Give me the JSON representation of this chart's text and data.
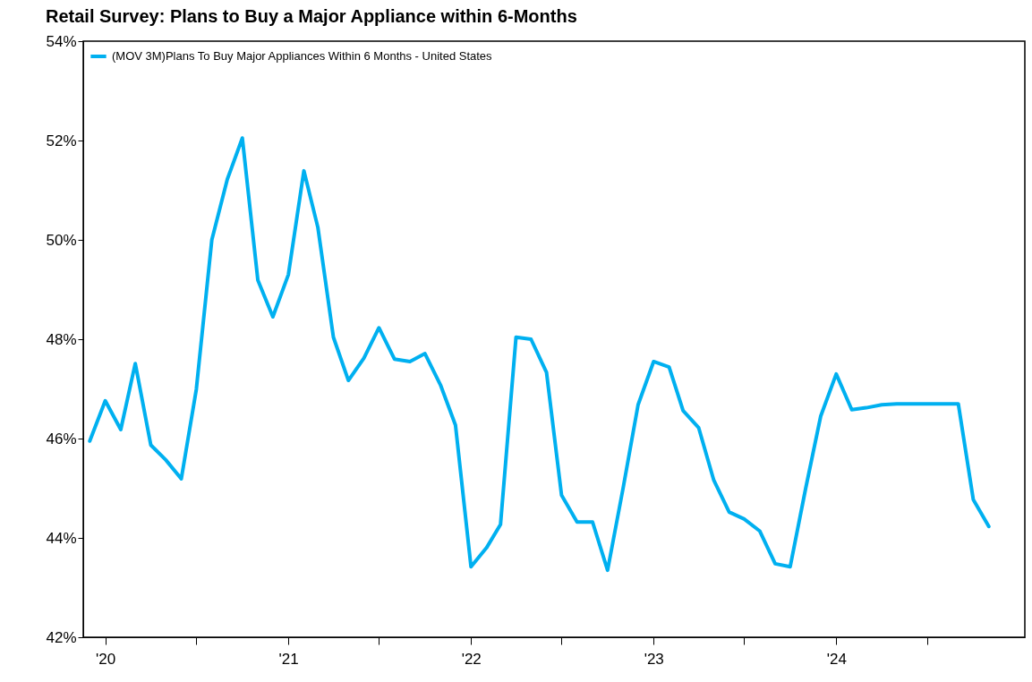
{
  "chart_data": {
    "type": "line",
    "title": "Retail Survey: Plans to Buy a Major Appliance within 6-Months",
    "x": [
      "2019-12",
      "2020-01",
      "2020-02",
      "2020-03",
      "2020-04",
      "2020-05",
      "2020-06",
      "2020-07",
      "2020-08",
      "2020-09",
      "2020-10",
      "2020-11",
      "2020-12",
      "2021-01",
      "2021-02",
      "2021-03",
      "2021-04",
      "2021-05",
      "2021-06",
      "2021-07",
      "2021-08",
      "2021-09",
      "2021-10",
      "2021-11",
      "2021-12",
      "2022-01",
      "2022-02",
      "2022-03",
      "2022-04",
      "2022-05",
      "2022-06",
      "2022-07",
      "2022-08",
      "2022-09",
      "2022-10",
      "2022-11",
      "2022-12",
      "2023-01",
      "2023-02",
      "2023-03",
      "2023-04",
      "2023-05",
      "2023-06",
      "2023-07",
      "2023-08",
      "2023-09",
      "2023-10",
      "2023-11",
      "2023-12",
      "2024-01",
      "2024-02",
      "2024-03",
      "2024-04",
      "2024-05",
      "2024-06",
      "2024-07",
      "2024-08",
      "2024-09",
      "2024-10",
      "2024-11"
    ],
    "series": [
      {
        "name": "(MOV 3M)Plans To Buy Major Appliances Within 6 Months - United States",
        "color": "#00b0f0",
        "values": [
          45.95,
          46.76,
          46.18,
          47.51,
          45.87,
          45.57,
          45.19,
          46.99,
          50.0,
          51.22,
          52.05,
          49.19,
          48.45,
          49.3,
          51.39,
          50.25,
          48.04,
          47.17,
          47.62,
          48.23,
          47.6,
          47.55,
          47.71,
          47.08,
          46.27,
          43.42,
          43.8,
          44.27,
          48.04,
          48.0,
          47.33,
          44.86,
          44.32,
          44.32,
          43.35,
          45.0,
          46.68,
          47.55,
          47.44,
          46.56,
          46.22,
          45.17,
          44.52,
          44.38,
          44.14,
          43.48,
          43.42,
          45.0,
          46.45,
          47.3,
          46.58,
          46.62,
          46.68,
          46.7,
          46.7,
          46.7,
          46.7,
          46.7,
          44.77,
          44.23
        ]
      }
    ],
    "xlim": [
      "2019-11-18",
      "2025-01-12"
    ],
    "xticks": [
      {
        "value": "2020-01-01",
        "label": "'20"
      },
      {
        "value": "2020-07-01",
        "label": null
      },
      {
        "value": "2021-01-01",
        "label": "'21"
      },
      {
        "value": "2021-07-01",
        "label": null
      },
      {
        "value": "2022-01-01",
        "label": "'22"
      },
      {
        "value": "2022-07-01",
        "label": null
      },
      {
        "value": "2023-01-01",
        "label": "'23"
      },
      {
        "value": "2023-07-01",
        "label": null
      },
      {
        "value": "2024-01-01",
        "label": "'24"
      },
      {
        "value": "2024-07-01",
        "label": null
      }
    ],
    "ylim": [
      42,
      54
    ],
    "yticks": [
      {
        "value": 42,
        "label": "42%"
      },
      {
        "value": 44,
        "label": "44%"
      },
      {
        "value": 46,
        "label": "46%"
      },
      {
        "value": 48,
        "label": "48%"
      },
      {
        "value": 50,
        "label": "50%"
      },
      {
        "value": 52,
        "label": "52%"
      },
      {
        "value": 54,
        "label": "54%"
      }
    ],
    "grid": false,
    "legend": "top left",
    "marker": "none",
    "line_style": "solid"
  }
}
